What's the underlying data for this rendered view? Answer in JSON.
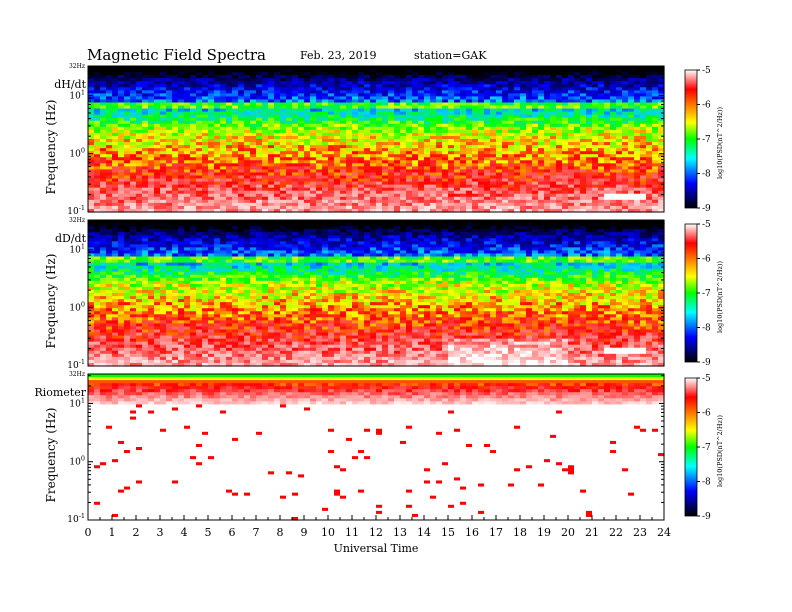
{
  "header": {
    "title": "Magnetic Field Spectra",
    "date": "Feb. 23, 2019",
    "station": "station=GAK"
  },
  "colorbar": {
    "ticks": [
      "-5",
      "-6",
      "-7",
      "-8",
      "-9"
    ],
    "label": "log10(PSD(nT^2/Hz))",
    "colors": [
      "#ffffff",
      "#ff0000",
      "#ffff00",
      "#00ff00",
      "#00ffff",
      "#0000ff",
      "#000000"
    ]
  },
  "chart_data": [
    {
      "type": "heatmap",
      "panel_label": "dH/dt",
      "ylabel": "Frequency (Hz)",
      "ytick_top": "32Hz",
      "yticks": [
        "10^1",
        "10^0",
        "10^-1"
      ],
      "ylim_hz": [
        0.1,
        32
      ],
      "yscale": "log",
      "xlim_ut": [
        0,
        24
      ],
      "zlim": [
        -9,
        -5
      ],
      "features": {
        "band_16hz": {
          "freq_hz": 6.5,
          "level": -6.9
        },
        "hot_patch": {
          "ut": [
            21.6,
            23.3
          ],
          "freq_hz": 0.18,
          "level": -5.0
        }
      }
    },
    {
      "type": "heatmap",
      "panel_label": "dD/dt",
      "ylabel": "Frequency (Hz)",
      "ytick_top": "32Hz",
      "yticks": [
        "10^1",
        "10^0",
        "10^-1"
      ],
      "ylim_hz": [
        0.1,
        32
      ],
      "yscale": "log",
      "xlim_ut": [
        0,
        24
      ],
      "zlim": [
        -9,
        -5
      ],
      "features": {
        "band_16hz": {
          "freq_hz": 6.5,
          "level": -6.9
        },
        "hot_patch": {
          "ut": [
            21.6,
            23.3
          ],
          "freq_hz": 0.18,
          "level": -5.0
        }
      }
    },
    {
      "type": "heatmap",
      "panel_label": "Riometer",
      "ylabel": "Frequency (Hz)",
      "ytick_top": "32Hz",
      "yticks": [
        "10^1",
        "10^0",
        "10^-1"
      ],
      "ylim_hz": [
        0.1,
        32
      ],
      "yscale": "log",
      "xlim_ut": [
        0,
        24
      ],
      "zlim": [
        -9,
        -5
      ]
    }
  ],
  "xaxis": {
    "label": "Universal Time",
    "ticks": [
      "0",
      "1",
      "2",
      "3",
      "4",
      "5",
      "6",
      "7",
      "8",
      "9",
      "10",
      "11",
      "12",
      "13",
      "14",
      "15",
      "16",
      "17",
      "18",
      "19",
      "20",
      "21",
      "22",
      "23",
      "24"
    ]
  }
}
